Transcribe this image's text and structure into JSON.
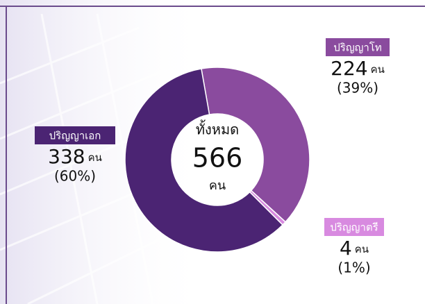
{
  "chart_data": {
    "type": "donut",
    "categories": [
      "ปริญญาโท",
      "ปริญญาตรี",
      "ปริญญาเอก"
    ],
    "values": [
      224,
      4,
      338
    ],
    "colors": [
      "#8a4b9e",
      "#d88ae0",
      "#4b2473"
    ],
    "unit": "คน",
    "percents": [
      39,
      1,
      60
    ],
    "percent_labels": [
      "(39%)",
      "(1%)",
      "(60%)"
    ],
    "total_label": "ทั้งหมด",
    "total": 566,
    "total_unit": "คน"
  }
}
